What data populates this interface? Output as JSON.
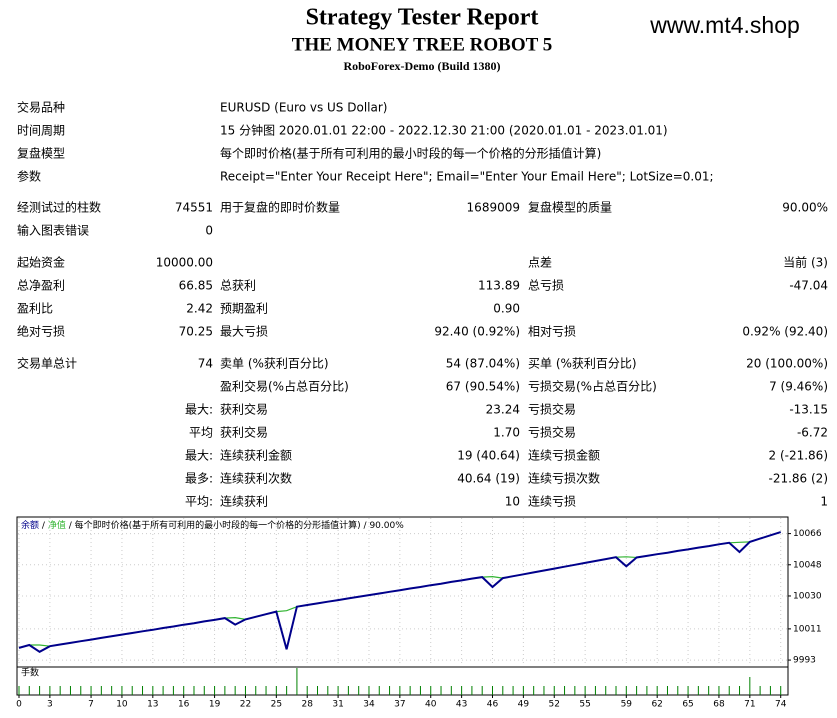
{
  "header": {
    "title": "Strategy Tester Report",
    "subtitle": "THE MONEY TREE ROBOT 5",
    "broker": "RoboForex-Demo (Build 1380)"
  },
  "watermark": "www.mt4.shop",
  "table": {
    "rows": [
      [
        "交易品种",
        "EURUSD (Euro vs US Dollar)"
      ],
      [
        "时间周期",
        "15 分钟图 2020.01.01 22:00 - 2022.12.30 21:00 (2020.01.01 - 2023.01.01)"
      ],
      [
        "复盘模型",
        "每个即时价格(基于所有可利用的最小时段的每一个价格的分形插值计算)"
      ],
      [
        "参数",
        "Receipt=\"Enter Your Receipt Here\"; Email=\"Enter Your Email Here\"; LotSize=0.01;"
      ],
      [
        "经测试过的柱数",
        "74551",
        "用于复盘的即时价数量",
        "1689009",
        "复盘模型的质量",
        "90.00%"
      ],
      [
        "输入图表错误",
        "0",
        null,
        null,
        null,
        null
      ],
      [
        "起始资金",
        "10000.00",
        null,
        null,
        "点差",
        "当前 (3)"
      ],
      [
        "总净盈利",
        "66.85",
        "总获利",
        "113.89",
        "总亏损",
        "-47.04"
      ],
      [
        "盈利比",
        "2.42",
        "预期盈利",
        "0.90",
        null,
        null
      ],
      [
        "绝对亏损",
        "70.25",
        "最大亏损",
        "92.40 (0.92%)",
        "相对亏损",
        "0.92% (92.40)"
      ],
      [
        "交易单总计",
        "74",
        "卖单 (%获利百分比)",
        "54 (87.04%)",
        "买单 (%获利百分比)",
        "20 (100.00%)"
      ],
      [
        null,
        null,
        "盈利交易(%占总百分比)",
        "67 (90.54%)",
        "亏损交易(%占总百分比)",
        "7 (9.46%)"
      ],
      [
        null,
        "最大:",
        "获利交易",
        "23.24",
        "亏损交易",
        "-13.15"
      ],
      [
        null,
        "平均",
        "获利交易",
        "1.70",
        "亏损交易",
        "-6.72"
      ],
      [
        null,
        "最大:",
        "连续获利金额",
        "19 (40.64)",
        "连续亏损金额",
        "2 (-21.86)"
      ],
      [
        null,
        "最多:",
        "连续获利次数",
        "40.64 (19)",
        "连续亏损次数",
        "-21.86 (2)"
      ],
      [
        null,
        "平均:",
        "连续获利",
        "10",
        "连续亏损",
        "1"
      ]
    ]
  },
  "chart_data": {
    "type": "line",
    "separator": "/",
    "model": "每个即时价格(基于所有可利用的最小时段的每一个价格的分形插值计算)",
    "quality": "90.00%",
    "series": [
      {
        "name": "余额",
        "color": "#00008b",
        "values": [
          10000,
          10001.7,
          9997.8,
          10001,
          10002.0,
          10002.9,
          10003.9,
          10004.8,
          10005.8,
          10006.7,
          10007.7,
          10008.6,
          10009.6,
          10010.5,
          10011.5,
          10012.4,
          10013.4,
          10014.3,
          10015.3,
          10016.2,
          10017.2,
          10013.5,
          10016.5,
          10018.0,
          10019.5,
          10021.0,
          9999.2,
          10023.8,
          10024.8,
          10025.7,
          10026.7,
          10027.6,
          10028.6,
          10029.5,
          10030.5,
          10031.4,
          10032.4,
          10033.3,
          10034.3,
          10035.2,
          10036.2,
          10037.1,
          10038.1,
          10039.0,
          10040.0,
          10040.9,
          10035.2,
          10040.3,
          10041.4,
          10042.5,
          10043.6,
          10044.7,
          10045.8,
          10046.9,
          10048.0,
          10049.1,
          10050.2,
          10051.3,
          10052.4,
          10047.1,
          10052.2,
          10053.1,
          10054.1,
          10055.0,
          10056.0,
          10056.9,
          10057.9,
          10058.8,
          10059.8,
          10060.7,
          10055.4,
          10061.2,
          10063.1,
          10065.0,
          10066.85
        ]
      },
      {
        "name": "净值",
        "color": "#32b432",
        "values": [
          10000,
          10001.7,
          10001.7,
          10001,
          10002.0,
          10002.9,
          10003.9,
          10004.8,
          10005.8,
          10006.7,
          10007.7,
          10008.6,
          10009.6,
          10010.5,
          10011.5,
          10012.4,
          10013.4,
          10014.3,
          10015.3,
          10016.2,
          10017.2,
          10017.5,
          10016.5,
          10018.0,
          10019.5,
          10021.0,
          10021.5,
          10023.8,
          10024.8,
          10025.7,
          10026.7,
          10027.6,
          10028.6,
          10029.5,
          10030.5,
          10031.4,
          10032.4,
          10033.3,
          10034.3,
          10035.2,
          10036.2,
          10037.1,
          10038.1,
          10039.0,
          10040.0,
          10040.9,
          10041.2,
          10040.3,
          10041.4,
          10042.5,
          10043.6,
          10044.7,
          10045.8,
          10046.9,
          10048.0,
          10049.1,
          10050.2,
          10051.3,
          10052.4,
          10052.6,
          10052.2,
          10053.1,
          10054.1,
          10055.0,
          10056.0,
          10056.9,
          10057.9,
          10058.8,
          10059.8,
          10060.7,
          10061.0,
          10061.2,
          10063.1,
          10065.0,
          10066.85
        ]
      }
    ],
    "volume": {
      "name": "手数",
      "color": "#008000",
      "values": [
        0.01,
        0.01,
        0.01,
        0.01,
        0.01,
        0.01,
        0.01,
        0.01,
        0.01,
        0.01,
        0.01,
        0.01,
        0.01,
        0.01,
        0.01,
        0.01,
        0.01,
        0.01,
        0.01,
        0.01,
        0.01,
        0.01,
        0.01,
        0.01,
        0.01,
        0.01,
        0.01,
        0.03,
        0.01,
        0.01,
        0.01,
        0.01,
        0.01,
        0.01,
        0.01,
        0.01,
        0.01,
        0.01,
        0.01,
        0.01,
        0.01,
        0.01,
        0.01,
        0.01,
        0.01,
        0.01,
        0.01,
        0.01,
        0.01,
        0.01,
        0.01,
        0.01,
        0.01,
        0.01,
        0.01,
        0.01,
        0.01,
        0.01,
        0.01,
        0.01,
        0.01,
        0.01,
        0.01,
        0.01,
        0.01,
        0.01,
        0.01,
        0.01,
        0.01,
        0.01,
        0.01,
        0.02,
        0.01,
        0.01,
        0.01
      ]
    },
    "xlim": [
      0,
      75
    ],
    "xticks": [
      0,
      3,
      7,
      10,
      13,
      16,
      19,
      22,
      25,
      28,
      31,
      34,
      37,
      40,
      43,
      46,
      49,
      52,
      55,
      59,
      62,
      65,
      68,
      71,
      74
    ],
    "ylim": [
      9989,
      10075
    ],
    "yticks": [
      9993,
      10011,
      10030,
      10048,
      10066
    ],
    "grid": true
  }
}
